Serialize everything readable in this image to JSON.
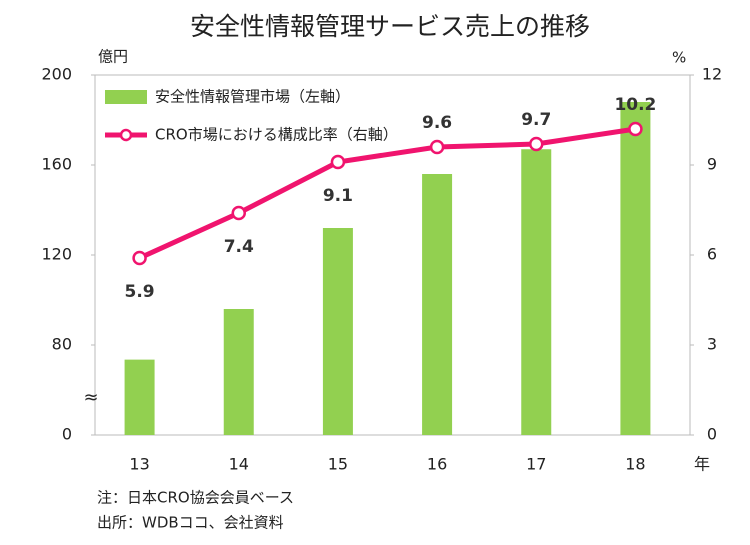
{
  "chart_data": {
    "type": "bar_line",
    "title": "安全性情報管理サービス売上の推移",
    "y_axis_label": "億円",
    "y2_axis_label": "%",
    "x_axis_label": "年",
    "categories": [
      "13",
      "14",
      "15",
      "16",
      "17",
      "18"
    ],
    "series": [
      {
        "name": "安全性情報管理市場（左軸）",
        "type": "bar",
        "color": "#92d050",
        "values": [
          67,
          96,
          132,
          156,
          167,
          188
        ]
      },
      {
        "name": "CRO市場における構成比率（右軸）",
        "type": "line",
        "axis": "y2",
        "color": "#f0146e",
        "values": [
          5.9,
          7.4,
          9.1,
          9.6,
          9.7,
          10.2
        ],
        "label_positions": [
          "below",
          "below",
          "below",
          "above",
          "above",
          "above"
        ]
      }
    ],
    "ylim": [
      0,
      200
    ],
    "yticks": [
      0,
      80,
      120,
      160,
      200
    ],
    "axis_break_symbol": "≈",
    "y2lim": [
      0,
      12
    ],
    "y2ticks": [
      0,
      3,
      6,
      9,
      12
    ],
    "legend": "upper left",
    "grid": false,
    "notes": [
      "注：日本CRO協会会員ベース",
      "出所：WDBココ、会社資料"
    ]
  }
}
